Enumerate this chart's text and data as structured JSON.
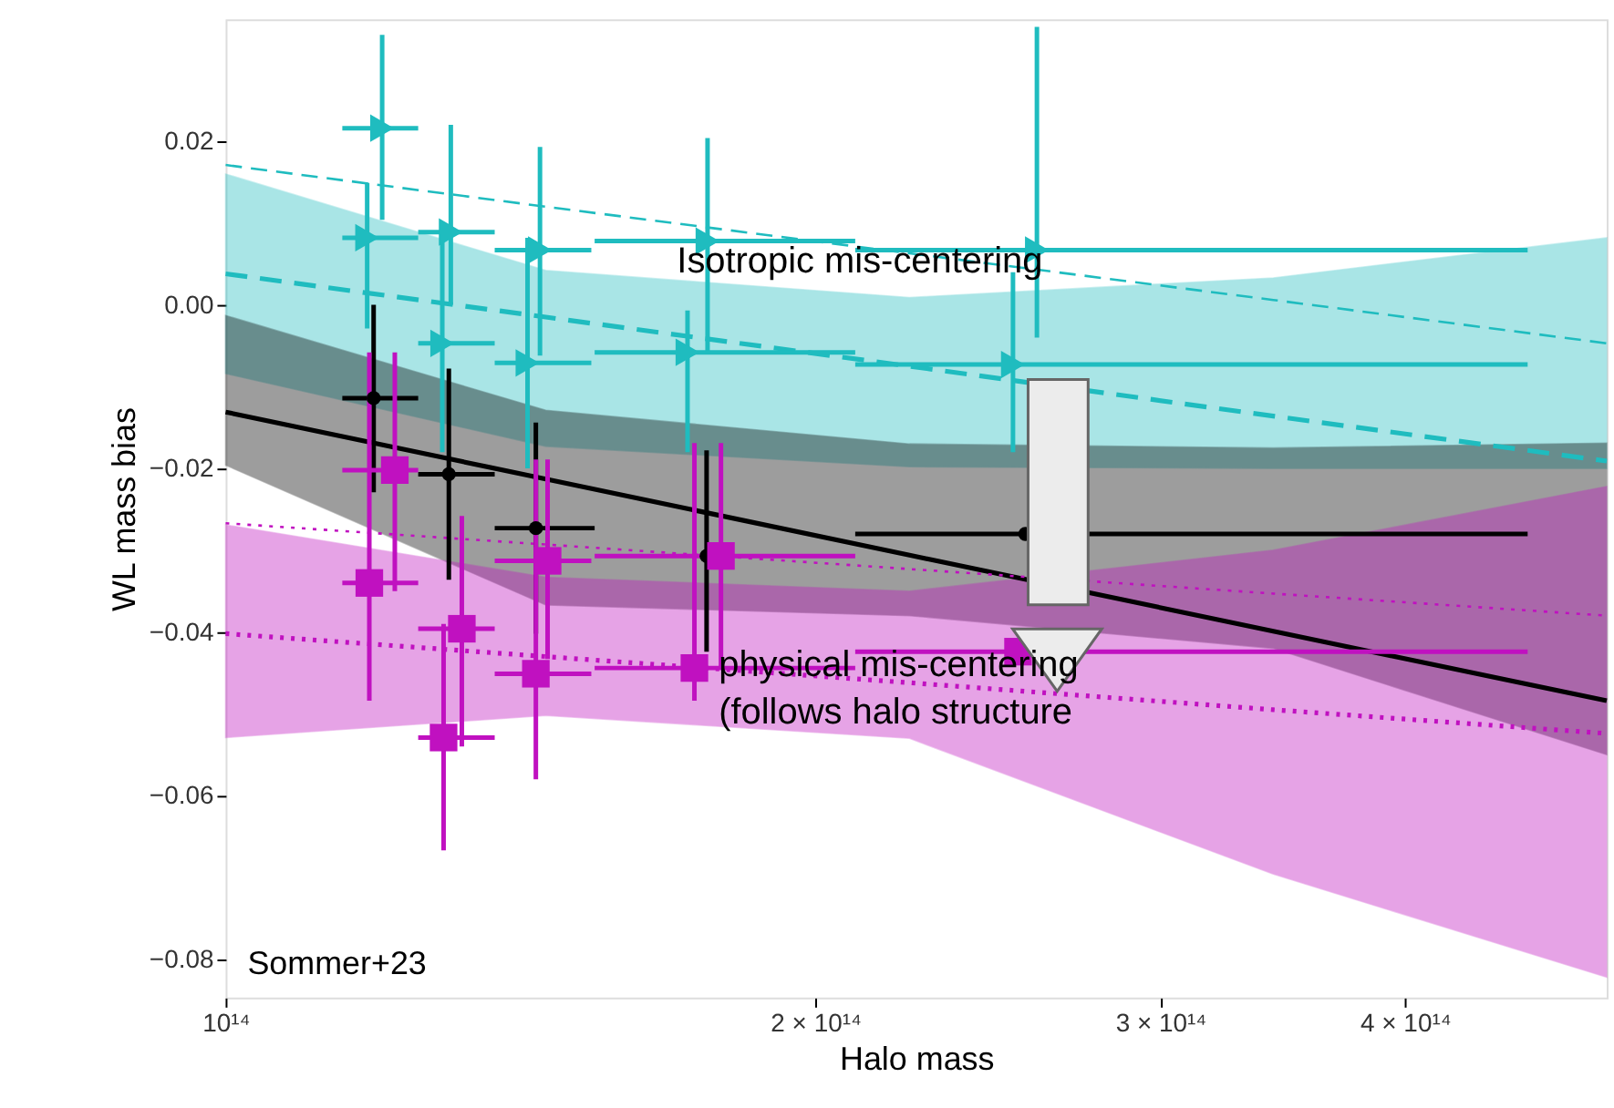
{
  "chart_data": {
    "type": "scatter",
    "xlabel": "Halo mass",
    "ylabel": "WL mass bias",
    "log": "x",
    "grid": false,
    "xlim": [
      100000000000000.0,
      507000000000000.0
    ],
    "ylim": [
      -0.0847,
      0.0349
    ],
    "xticks": [
      {
        "value": 100000000000000.0,
        "label": "10¹⁴"
      },
      {
        "value": 200000000000000.0,
        "label": "2 × 10¹⁴"
      },
      {
        "value": 300000000000000.0,
        "label": "3 × 10¹⁴"
      },
      {
        "value": 400000000000000.0,
        "label": "4 × 10¹⁴"
      }
    ],
    "yticks": [
      {
        "value": -0.08,
        "label": "−0.08"
      },
      {
        "value": -0.06,
        "label": "−0.06"
      },
      {
        "value": -0.04,
        "label": "−0.04"
      },
      {
        "value": -0.02,
        "label": "−0.02"
      },
      {
        "value": 0,
        "label": "0.00"
      },
      {
        "value": 0.02,
        "label": "0.02"
      }
    ],
    "annotations": [
      "Isotropic mis-centering",
      "physical  mis-centering\n(follows halo structure",
      "Sommer+23"
    ],
    "series": [
      {
        "type": "line",
        "color": "#1fbcbf",
        "line_style": "dashed",
        "marker": "none",
        "x": [
          100000000000000.0,
          145700000000000.0,
          223400000000000.0,
          342600000000000.0,
          507000000000000.0
        ],
        "values": [
          0.0171,
          0.012,
          0.0063,
          0.0006,
          -0.0047
        ]
      },
      {
        "type": "line",
        "color": "#1fbcbf",
        "line_style": "dashed",
        "marker": "none",
        "x": [
          100000000000000.0,
          145700000000000.0,
          223400000000000.0,
          342600000000000.0,
          507000000000000.0
        ],
        "values": [
          0.0038,
          -0.0015,
          -0.0075,
          -0.0136,
          -0.0191
        ],
        "lower": [
          -0.0084,
          -0.0173,
          -0.0198,
          -0.02,
          -0.02
        ],
        "upper": [
          0.016,
          0.0042,
          0.0009,
          0.0033,
          0.0082
        ]
      },
      {
        "type": "line",
        "color": "#000000",
        "line_style": "solid",
        "marker": "none",
        "x": [
          100000000000000.0,
          145700000000000.0,
          223400000000000.0,
          342600000000000.0,
          507000000000000.0
        ],
        "values": [
          -0.0131,
          -0.0213,
          -0.0306,
          -0.0399,
          -0.0484
        ],
        "lower": [
          -0.0196,
          -0.0367,
          -0.038,
          -0.042,
          -0.055
        ],
        "upper": [
          -0.0013,
          -0.0129,
          -0.017,
          -0.0175,
          -0.0169
        ]
      },
      {
        "type": "line",
        "color": "#c011c0",
        "line_style": "dotted",
        "marker": "none",
        "x": [
          100000000000000.0,
          145700000000000.0,
          223400000000000.0,
          342600000000000.0,
          507000000000000.0
        ],
        "values": [
          -0.0267,
          -0.0293,
          -0.0323,
          -0.0353,
          -0.038
        ]
      },
      {
        "type": "line",
        "color": "#c011c0",
        "line_style": "dotted",
        "marker": "none",
        "x": [
          100000000000000.0,
          145700000000000.0,
          223400000000000.0,
          342600000000000.0,
          507000000000000.0
        ],
        "values": [
          -0.0402,
          -0.043,
          -0.0462,
          -0.0495,
          -0.0524
        ],
        "lower": [
          -0.0529,
          -0.0502,
          -0.053,
          -0.0696,
          -0.0822
        ],
        "upper": [
          -0.0269,
          -0.0333,
          -0.035,
          -0.03,
          -0.0222
        ]
      },
      {
        "type": "scatter",
        "color": "#1fbcbf",
        "marker": "triangle",
        "x": [
          120200000000000.0,
          130300000000000.0,
          144700000000000.0,
          176200000000000.0,
          259500000000000.0
        ],
        "values": [
          0.0216,
          0.0089,
          0.0067,
          0.0078,
          0.0067
        ],
        "xerrors": [
          [
            114700000000000.0,
            125400000000000.0
          ],
          [
            125400000000000.0,
            137200000000000.0
          ],
          [
            137200000000000.0,
            153700000000000.0
          ],
          [
            154300000000000.0,
            209600000000000.0
          ],
          [
            209600000000000.0,
            462000000000000.0
          ]
        ],
        "errors": [
          [
            0.0104,
            0.033
          ],
          [
            0.0,
            0.022
          ],
          [
            -0.0062,
            0.0193
          ],
          [
            -0.0058,
            0.0204
          ],
          [
            -0.004,
            0.034
          ]
        ]
      },
      {
        "type": "scatter",
        "color": "#1fbcbf",
        "marker": "triangle",
        "x": [
          118100000000000.0,
          129000000000000.0,
          142600000000000.0,
          172100000000000.0,
          252300000000000.0
        ],
        "values": [
          0.0082,
          -0.0047,
          -0.0071,
          -0.0058,
          -0.0073
        ],
        "xerrors": [
          [
            114700000000000.0,
            125400000000000.0
          ],
          [
            125400000000000.0,
            137200000000000.0
          ],
          [
            137200000000000.0,
            153700000000000.0
          ],
          [
            154300000000000.0,
            209600000000000.0
          ],
          [
            209600000000000.0,
            462000000000000.0
          ]
        ],
        "errors": [
          [
            -0.0029,
            0.0149
          ],
          [
            -0.018,
            0.01
          ],
          [
            -0.02,
            0.0082
          ],
          [
            -0.018,
            -0.0007
          ],
          [
            -0.018,
            0.004
          ]
        ]
      },
      {
        "type": "scatter",
        "color": "#000000",
        "marker": "circle",
        "x": [
          119000000000000.0,
          130000000000000.0,
          144000000000000.0,
          176000000000000.0,
          256000000000000.0
        ],
        "values": [
          -0.0114,
          -0.0207,
          -0.0273,
          -0.0307,
          -0.028
        ],
        "xerrors": [
          [
            114700000000000.0,
            125400000000000.0
          ],
          [
            125400000000000.0,
            137200000000000.0
          ],
          [
            137200000000000.0,
            154300000000000.0
          ],
          null,
          [
            209600000000000.0,
            462000000000000.0
          ]
        ],
        "errors": [
          [
            -0.0229,
            0.0
          ],
          [
            -0.0336,
            -0.0078
          ],
          [
            -0.0402,
            -0.0144
          ],
          [
            -0.0424,
            -0.0178
          ],
          null
        ]
      },
      {
        "type": "scatter",
        "color": "#c011c0",
        "marker": "square",
        "x": [
          122000000000000.0,
          132000000000000.0,
          146000000000000.0,
          179000000000000.0
        ],
        "values": [
          -0.0202,
          -0.0396,
          -0.0313,
          -0.0307
        ],
        "xerrors": [
          [
            114700000000000.0,
            125400000000000.0
          ],
          [
            125400000000000.0,
            137200000000000.0
          ],
          [
            137200000000000.0,
            153700000000000.0
          ],
          [
            154300000000000.0,
            209600000000000.0
          ]
        ],
        "errors": [
          [
            -0.035,
            -0.0058
          ],
          [
            -0.054,
            -0.0258
          ],
          [
            -0.0433,
            -0.0189
          ],
          [
            -0.0444,
            -0.0169
          ]
        ]
      },
      {
        "type": "scatter",
        "color": "#c011c0",
        "marker": "square",
        "x": [
          118400000000000.0,
          129200000000000.0,
          144000000000000.0,
          173500000000000.0,
          253800000000000.0
        ],
        "values": [
          -0.034,
          -0.0529,
          -0.0451,
          -0.0444,
          -0.0424
        ],
        "xerrors": [
          [
            114700000000000.0,
            125400000000000.0
          ],
          [
            125400000000000.0,
            137200000000000.0
          ],
          [
            137200000000000.0,
            153700000000000.0
          ],
          [
            154300000000000.0,
            209600000000000.0
          ],
          [
            209600000000000.0,
            462000000000000.0
          ]
        ],
        "errors": [
          [
            -0.0484,
            -0.0058
          ],
          [
            -0.0667,
            -0.039
          ],
          [
            -0.058,
            -0.0189
          ],
          [
            -0.0484,
            -0.0169
          ],
          null
        ]
      }
    ]
  }
}
